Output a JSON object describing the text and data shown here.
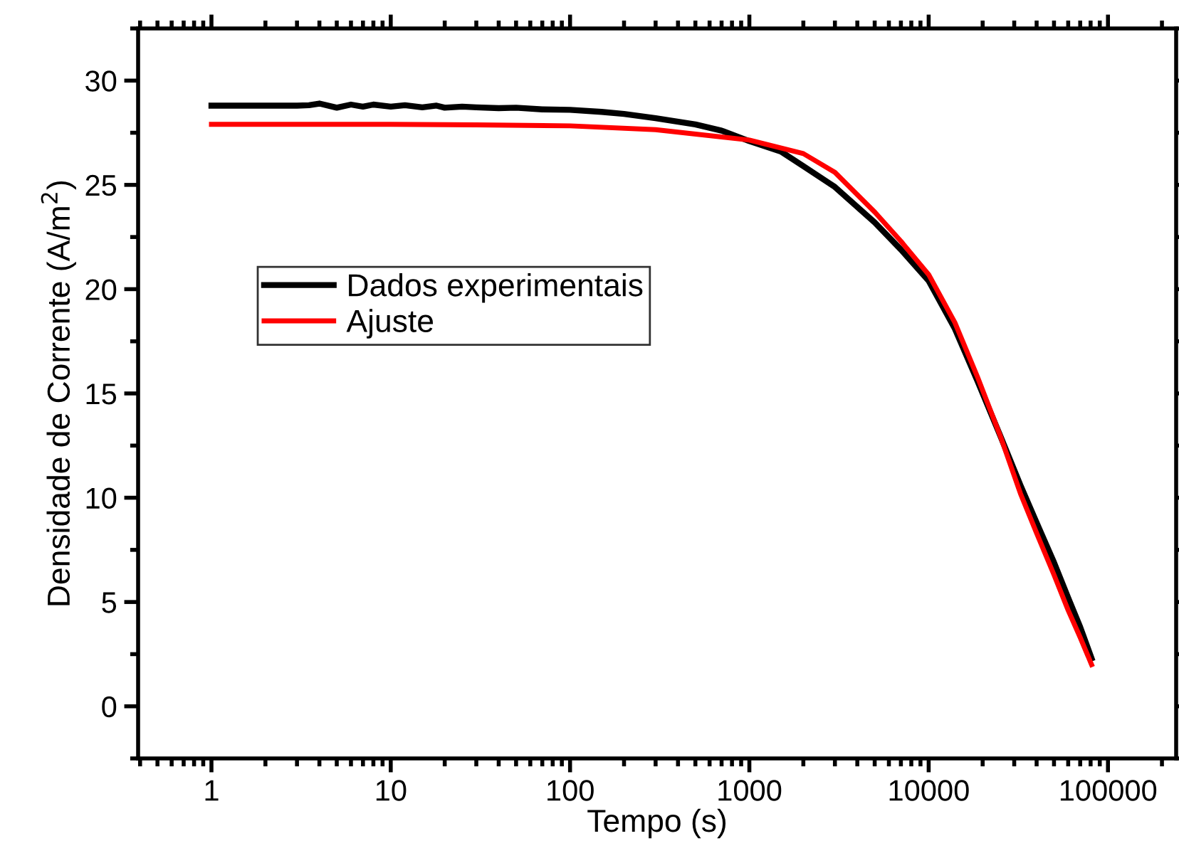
{
  "chart_data": {
    "type": "line",
    "xlabel": "Tempo (s)",
    "ylabel": "Densidade de Corrente (A/m$^{2}$)",
    "log": "x",
    "xlim": [
      0.39,
      240000
    ],
    "xticks": [
      1,
      10,
      100,
      1000,
      10000,
      100000
    ],
    "ylim": [
      -2.5,
      32.5
    ],
    "yticks": [
      0,
      5,
      10,
      15,
      20,
      25,
      30
    ],
    "grid": false,
    "legend": "left",
    "marker": "none",
    "line_style": "solid",
    "series": [
      {
        "name": "Dados experimentais",
        "color": "#000000",
        "x": [
          1,
          2,
          3,
          3.5,
          4,
          5,
          6,
          7,
          8,
          10,
          12,
          15,
          18,
          20,
          25,
          30,
          40,
          50,
          70,
          100,
          150,
          200,
          300,
          500,
          700,
          1000,
          1500,
          2000,
          3000,
          5000,
          7000,
          10000,
          14000,
          18700,
          25000,
          32500,
          40000,
          50000,
          60000,
          70000,
          81000
        ],
        "values": [
          28.8,
          28.8,
          28.8,
          28.82,
          28.9,
          28.7,
          28.85,
          28.75,
          28.85,
          28.75,
          28.82,
          28.72,
          28.8,
          28.7,
          28.75,
          28.72,
          28.68,
          28.7,
          28.62,
          28.6,
          28.5,
          28.4,
          28.2,
          27.9,
          27.6,
          27.1,
          26.6,
          25.9,
          24.9,
          23.2,
          21.9,
          20.4,
          18.1,
          15.6,
          13.0,
          10.6,
          8.8,
          6.9,
          5.2,
          3.8,
          2.3
        ]
      },
      {
        "name": "Ajuste",
        "color": "#ff0000",
        "x": [
          1,
          3,
          10,
          30,
          100,
          300,
          1000,
          2000,
          3000,
          5000,
          7000,
          10000,
          14000,
          18700,
          25000,
          32500,
          40000,
          50000,
          60000,
          70000,
          81000
        ],
        "values": [
          27.9,
          27.9,
          27.9,
          27.88,
          27.83,
          27.65,
          27.15,
          26.5,
          25.6,
          23.7,
          22.3,
          20.7,
          18.4,
          15.8,
          13.0,
          10.2,
          8.3,
          6.3,
          4.6,
          3.3,
          2.0
        ]
      }
    ]
  }
}
